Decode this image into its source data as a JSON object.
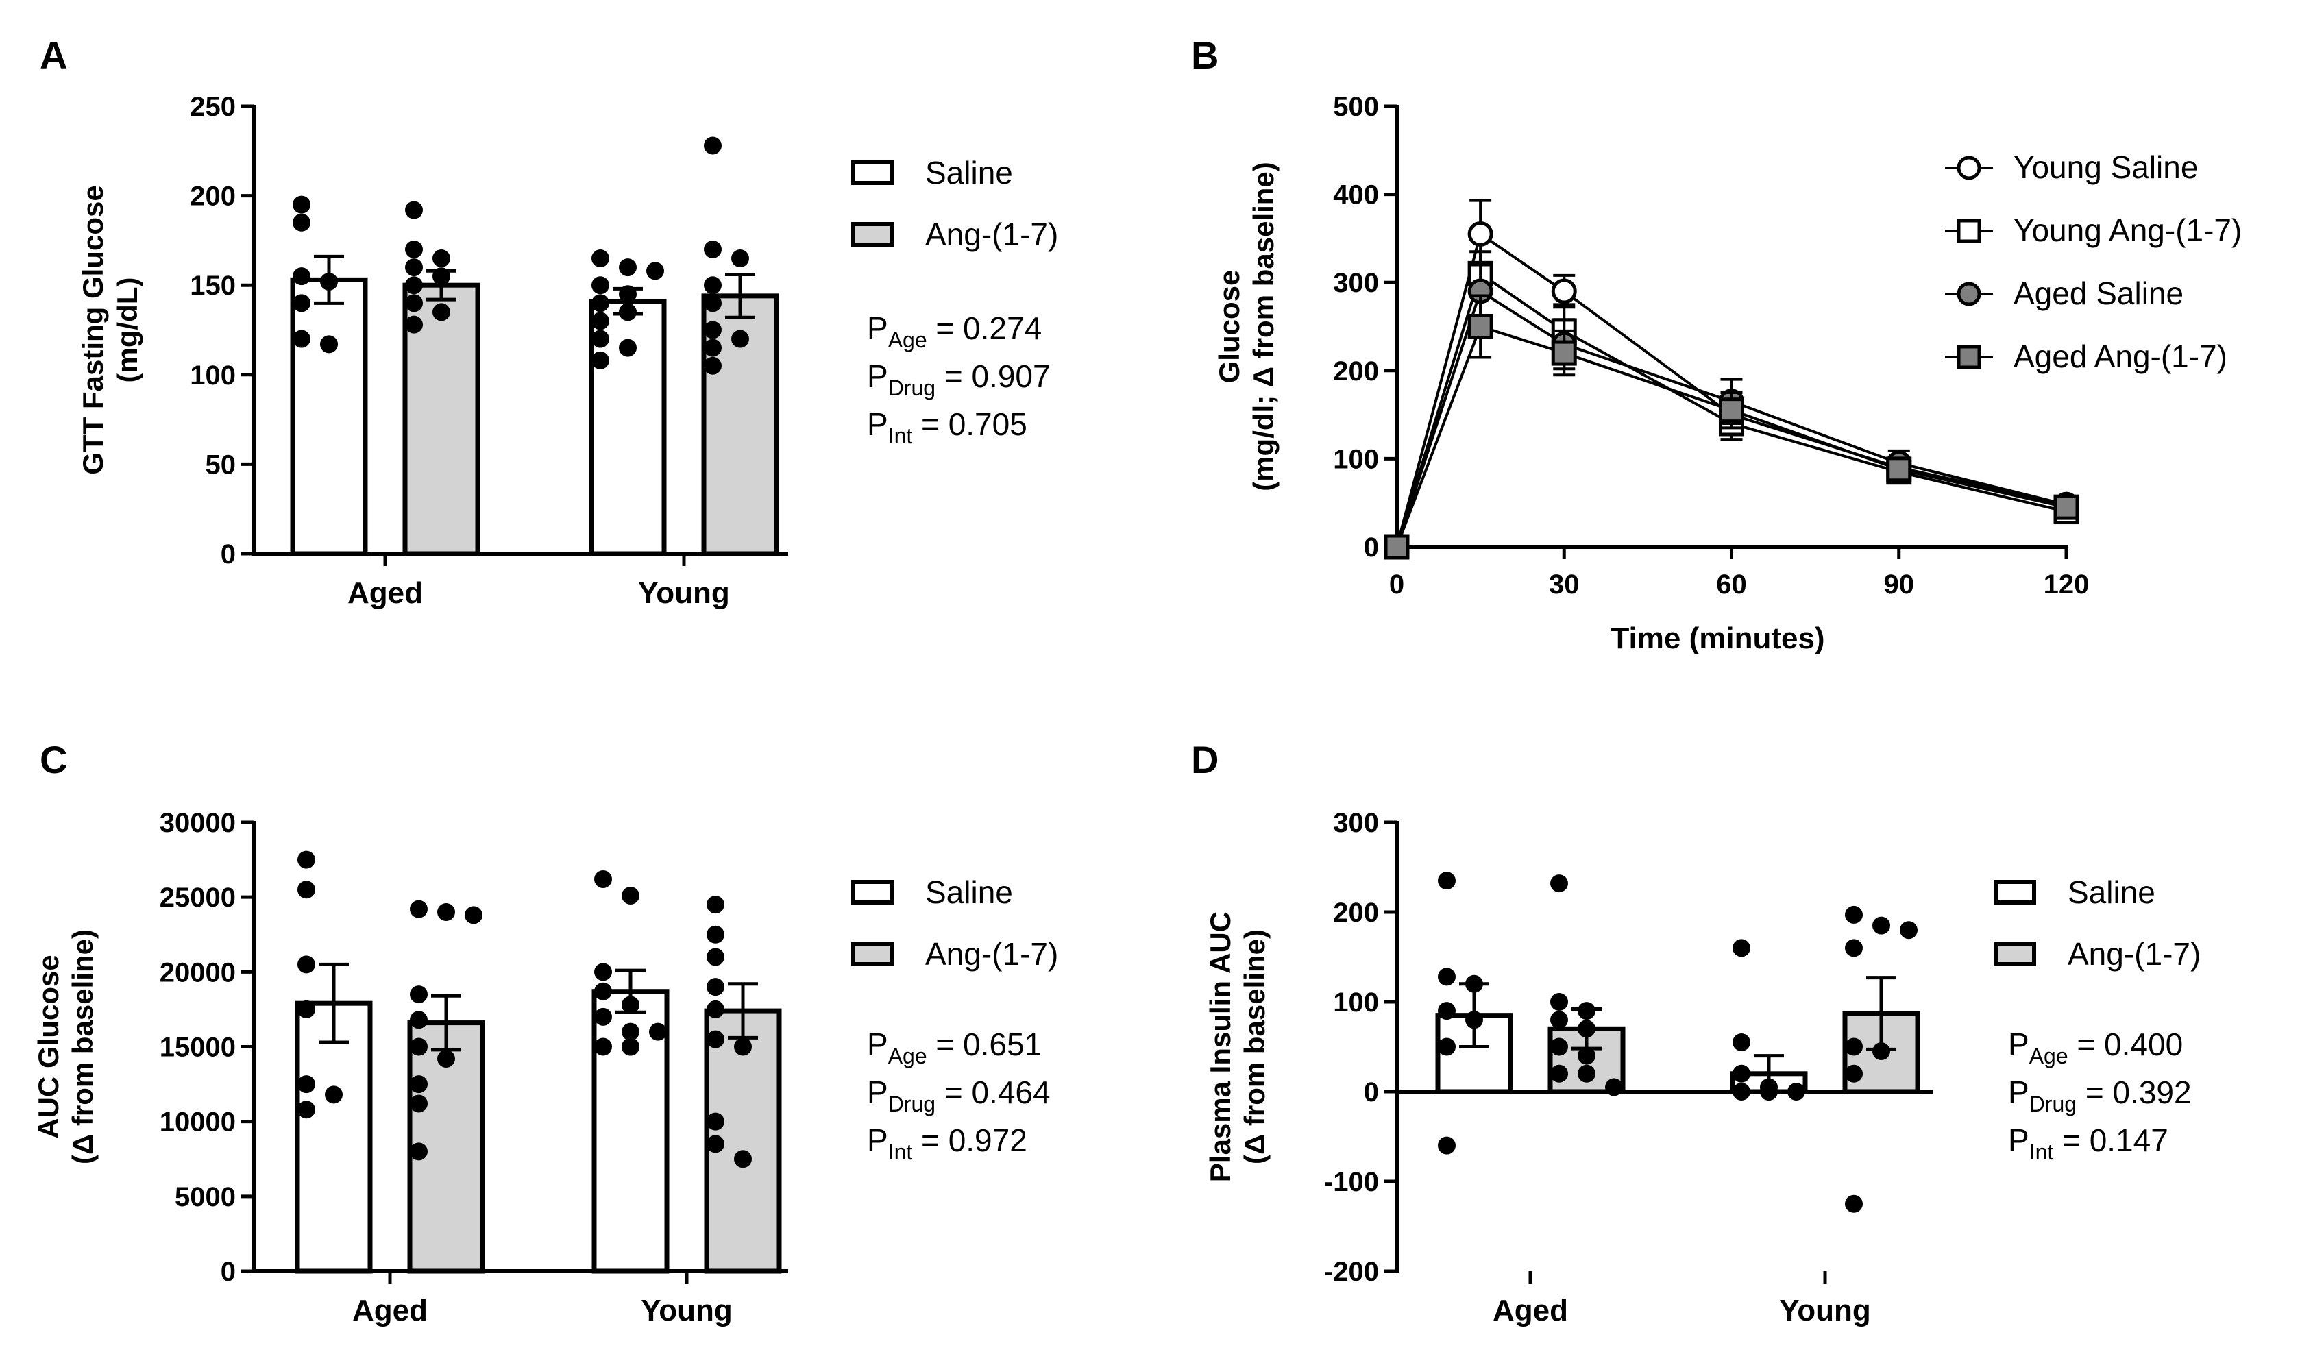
{
  "panels": {
    "A": {
      "letter": "A"
    },
    "B": {
      "letter": "B"
    },
    "C": {
      "letter": "C"
    },
    "D": {
      "letter": "D"
    }
  },
  "chart_data": [
    {
      "id": "A",
      "type": "bar",
      "ylabel_lines": [
        "GTT Fasting Glucose",
        "(mg/dL)"
      ],
      "ylim": [
        0,
        250
      ],
      "yticks": [
        0,
        50,
        100,
        150,
        200,
        250
      ],
      "categories": [
        "Aged",
        "Young"
      ],
      "series": [
        {
          "name": "Saline",
          "fill": "#ffffff",
          "means": [
            153,
            141
          ],
          "sem": [
            13,
            7
          ],
          "points": [
            [
              195,
              185,
              155,
              152,
              140,
              120,
              117
            ],
            [
              165,
              160,
              158,
              150,
              145,
              140,
              135,
              130,
              120,
              115,
              108
            ]
          ]
        },
        {
          "name": "Ang-(1-7)",
          "fill": "#d3d3d3",
          "means": [
            150,
            144
          ],
          "sem": [
            8,
            12
          ],
          "points": [
            [
              192,
              170,
              165,
              160,
              155,
              150,
              140,
              135,
              128
            ],
            [
              228,
              170,
              165,
              150,
              140,
              125,
              120,
              115,
              105
            ]
          ]
        }
      ],
      "legend": [
        "Saline",
        "Ang-(1-7)"
      ],
      "stats": [
        {
          "main": "P",
          "sub": "Age",
          "rest": " = 0.274"
        },
        {
          "main": "P",
          "sub": "Drug",
          "rest": " = 0.907"
        },
        {
          "main": "P",
          "sub": "Int",
          "rest": " = 0.705"
        }
      ]
    },
    {
      "id": "B",
      "type": "line",
      "ylabel_lines": [
        "Glucose",
        "(mg/dl; Δ from baseline)"
      ],
      "xlabel": "Time (minutes)",
      "xlim": [
        0,
        120
      ],
      "xticks": [
        0,
        30,
        60,
        90,
        120
      ],
      "ylim": [
        0,
        500
      ],
      "yticks": [
        0,
        100,
        200,
        300,
        400,
        500
      ],
      "x": [
        0,
        15,
        30,
        60,
        90,
        120
      ],
      "series": [
        {
          "name": "Young Saline",
          "marker": "circle",
          "fill": "#ffffff",
          "values": [
            0,
            355,
            290,
            150,
            90,
            48
          ],
          "sem": [
            0,
            38,
            18,
            20,
            12,
            6
          ]
        },
        {
          "name": "Young Ang-(1-7)",
          "marker": "square",
          "fill": "#ffffff",
          "values": [
            0,
            310,
            245,
            140,
            85,
            40
          ],
          "sem": [
            0,
            25,
            30,
            18,
            10,
            6
          ]
        },
        {
          "name": "Aged Saline",
          "marker": "circle",
          "fill": "#808080",
          "values": [
            0,
            290,
            230,
            165,
            95,
            48
          ],
          "sem": [
            0,
            30,
            28,
            25,
            14,
            6
          ]
        },
        {
          "name": "Aged Ang-(1-7)",
          "marker": "square",
          "fill": "#808080",
          "values": [
            0,
            250,
            220,
            155,
            88,
            45
          ],
          "sem": [
            0,
            35,
            25,
            20,
            12,
            6
          ]
        }
      ],
      "legend": [
        "Young Saline",
        "Young Ang-(1-7)",
        "Aged Saline",
        "Aged Ang-(1-7)"
      ]
    },
    {
      "id": "C",
      "type": "bar",
      "ylabel_lines": [
        "AUC Glucose",
        "(Δ from baseline)"
      ],
      "ylim": [
        0,
        30000
      ],
      "yticks": [
        0,
        5000,
        10000,
        15000,
        20000,
        25000,
        30000
      ],
      "categories": [
        "Aged",
        "Young"
      ],
      "series": [
        {
          "name": "Saline",
          "fill": "#ffffff",
          "means": [
            17900,
            18700
          ],
          "sem": [
            2600,
            1400
          ],
          "points": [
            [
              27500,
              25500,
              20500,
              17500,
              12500,
              11800,
              10800
            ],
            [
              26200,
              25100,
              20000,
              18700,
              17800,
              17000,
              16000,
              16000,
              15000,
              15000,
              15000
            ]
          ]
        },
        {
          "name": "Ang-(1-7)",
          "fill": "#d3d3d3",
          "means": [
            16600,
            17400
          ],
          "sem": [
            1800,
            1800
          ],
          "points": [
            [
              24200,
              24000,
              23800,
              18500,
              16800,
              15000,
              14200,
              12500,
              11200,
              8000
            ],
            [
              24500,
              22500,
              21000,
              19000,
              17500,
              15500,
              15000,
              10000,
              8500,
              7500
            ]
          ]
        }
      ],
      "legend": [
        "Saline",
        "Ang-(1-7)"
      ],
      "stats": [
        {
          "main": "P",
          "sub": "Age",
          "rest": " = 0.651"
        },
        {
          "main": "P",
          "sub": "Drug",
          "rest": " = 0.464"
        },
        {
          "main": "P",
          "sub": "Int",
          "rest": " = 0.972"
        }
      ]
    },
    {
      "id": "D",
      "type": "bar",
      "ylabel_lines": [
        "Plasma Insulin AUC",
        "(Δ from baseline)"
      ],
      "ylim": [
        -200,
        300
      ],
      "yticks": [
        -200,
        -100,
        0,
        100,
        200,
        300
      ],
      "categories": [
        "Aged",
        "Young"
      ],
      "series": [
        {
          "name": "Saline",
          "fill": "#ffffff",
          "means": [
            85,
            20
          ],
          "sem": [
            35,
            20
          ],
          "points": [
            [
              235,
              128,
              120,
              90,
              80,
              50,
              -60
            ],
            [
              160,
              55,
              20,
              5,
              0,
              0,
              0,
              0
            ]
          ]
        },
        {
          "name": "Ang-(1-7)",
          "fill": "#d3d3d3",
          "means": [
            70,
            87
          ],
          "sem": [
            22,
            40
          ],
          "points": [
            [
              232,
              100,
              90,
              80,
              70,
              50,
              40,
              20,
              20,
              5
            ],
            [
              197,
              185,
              180,
              160,
              50,
              45,
              20,
              -125
            ]
          ]
        }
      ],
      "legend": [
        "Saline",
        "Ang-(1-7)"
      ],
      "stats": [
        {
          "main": "P",
          "sub": "Age",
          "rest": " = 0.400"
        },
        {
          "main": "P",
          "sub": "Drug",
          "rest": " = 0.392"
        },
        {
          "main": "P",
          "sub": "Int",
          "rest": " = 0.147"
        }
      ]
    }
  ]
}
